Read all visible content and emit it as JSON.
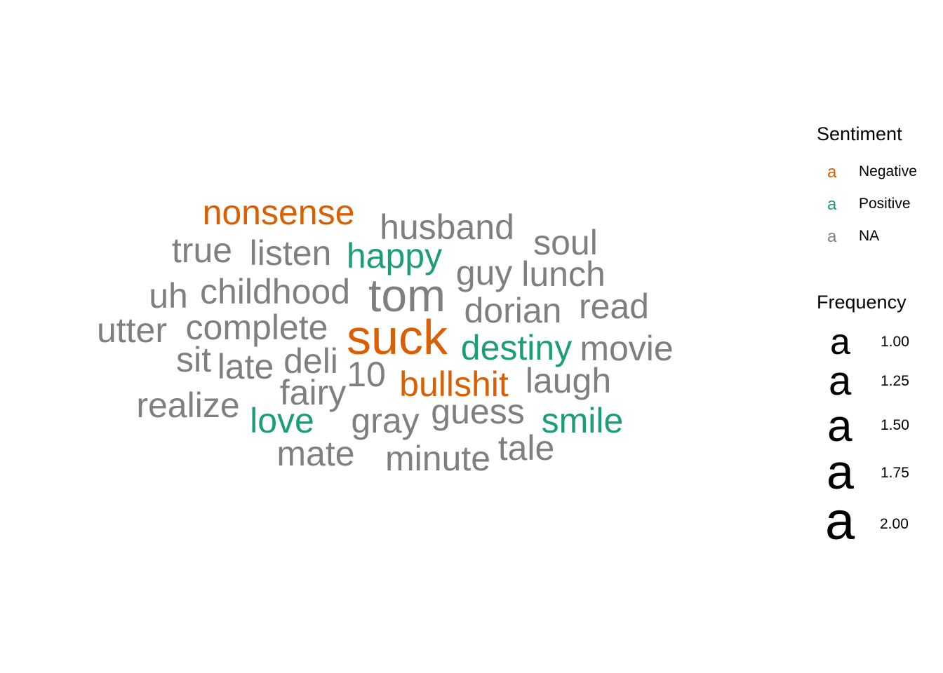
{
  "colors": {
    "Negative": "#d95f02",
    "Positive": "#1b9e77",
    "NA": "#7f7f7f"
  },
  "legend": {
    "sentiment_title": "Sentiment",
    "sentiment_items": [
      {
        "key": "a",
        "label": "Negative"
      },
      {
        "key": "a",
        "label": "Positive"
      },
      {
        "key": "a",
        "label": "NA"
      }
    ],
    "frequency_title": "Frequency",
    "frequency_items": [
      {
        "key": "a",
        "label": "1.00"
      },
      {
        "key": "a",
        "label": "1.25"
      },
      {
        "key": "a",
        "label": "1.50"
      },
      {
        "key": "a",
        "label": "1.75"
      },
      {
        "key": "a",
        "label": "2.00"
      }
    ]
  },
  "chart_data": {
    "type": "wordcloud",
    "size_variable": "Frequency",
    "color_variable": "Sentiment",
    "words": [
      {
        "word": "nonsense",
        "sentiment": "Negative",
        "frequency": 1
      },
      {
        "word": "husband",
        "sentiment": "NA",
        "frequency": 1
      },
      {
        "word": "soul",
        "sentiment": "NA",
        "frequency": 1
      },
      {
        "word": "true",
        "sentiment": "NA",
        "frequency": 1
      },
      {
        "word": "listen",
        "sentiment": "NA",
        "frequency": 1
      },
      {
        "word": "happy",
        "sentiment": "Positive",
        "frequency": 1
      },
      {
        "word": "guy",
        "sentiment": "NA",
        "frequency": 1
      },
      {
        "word": "lunch",
        "sentiment": "NA",
        "frequency": 1
      },
      {
        "word": "uh",
        "sentiment": "NA",
        "frequency": 1
      },
      {
        "word": "childhood",
        "sentiment": "NA",
        "frequency": 1
      },
      {
        "word": "tom",
        "sentiment": "NA",
        "frequency": 2
      },
      {
        "word": "dorian",
        "sentiment": "NA",
        "frequency": 1
      },
      {
        "word": "read",
        "sentiment": "NA",
        "frequency": 1
      },
      {
        "word": "utter",
        "sentiment": "NA",
        "frequency": 1
      },
      {
        "word": "complete",
        "sentiment": "NA",
        "frequency": 1
      },
      {
        "word": "suck",
        "sentiment": "Negative",
        "frequency": 2
      },
      {
        "word": "destiny",
        "sentiment": "Positive",
        "frequency": 1
      },
      {
        "word": "movie",
        "sentiment": "NA",
        "frequency": 1
      },
      {
        "word": "sit",
        "sentiment": "NA",
        "frequency": 1
      },
      {
        "word": "late",
        "sentiment": "NA",
        "frequency": 1
      },
      {
        "word": "deli",
        "sentiment": "NA",
        "frequency": 1
      },
      {
        "word": "10",
        "sentiment": "NA",
        "frequency": 1
      },
      {
        "word": "bullshit",
        "sentiment": "Negative",
        "frequency": 1
      },
      {
        "word": "laugh",
        "sentiment": "NA",
        "frequency": 1
      },
      {
        "word": "fairy",
        "sentiment": "NA",
        "frequency": 1
      },
      {
        "word": "realize",
        "sentiment": "NA",
        "frequency": 1
      },
      {
        "word": "love",
        "sentiment": "Positive",
        "frequency": 1
      },
      {
        "word": "gray",
        "sentiment": "NA",
        "frequency": 1
      },
      {
        "word": "guess",
        "sentiment": "NA",
        "frequency": 1
      },
      {
        "word": "smile",
        "sentiment": "Positive",
        "frequency": 1
      },
      {
        "word": "mate",
        "sentiment": "NA",
        "frequency": 1
      },
      {
        "word": "minute",
        "sentiment": "NA",
        "frequency": 1
      },
      {
        "word": "tale",
        "sentiment": "NA",
        "frequency": 1
      }
    ]
  }
}
